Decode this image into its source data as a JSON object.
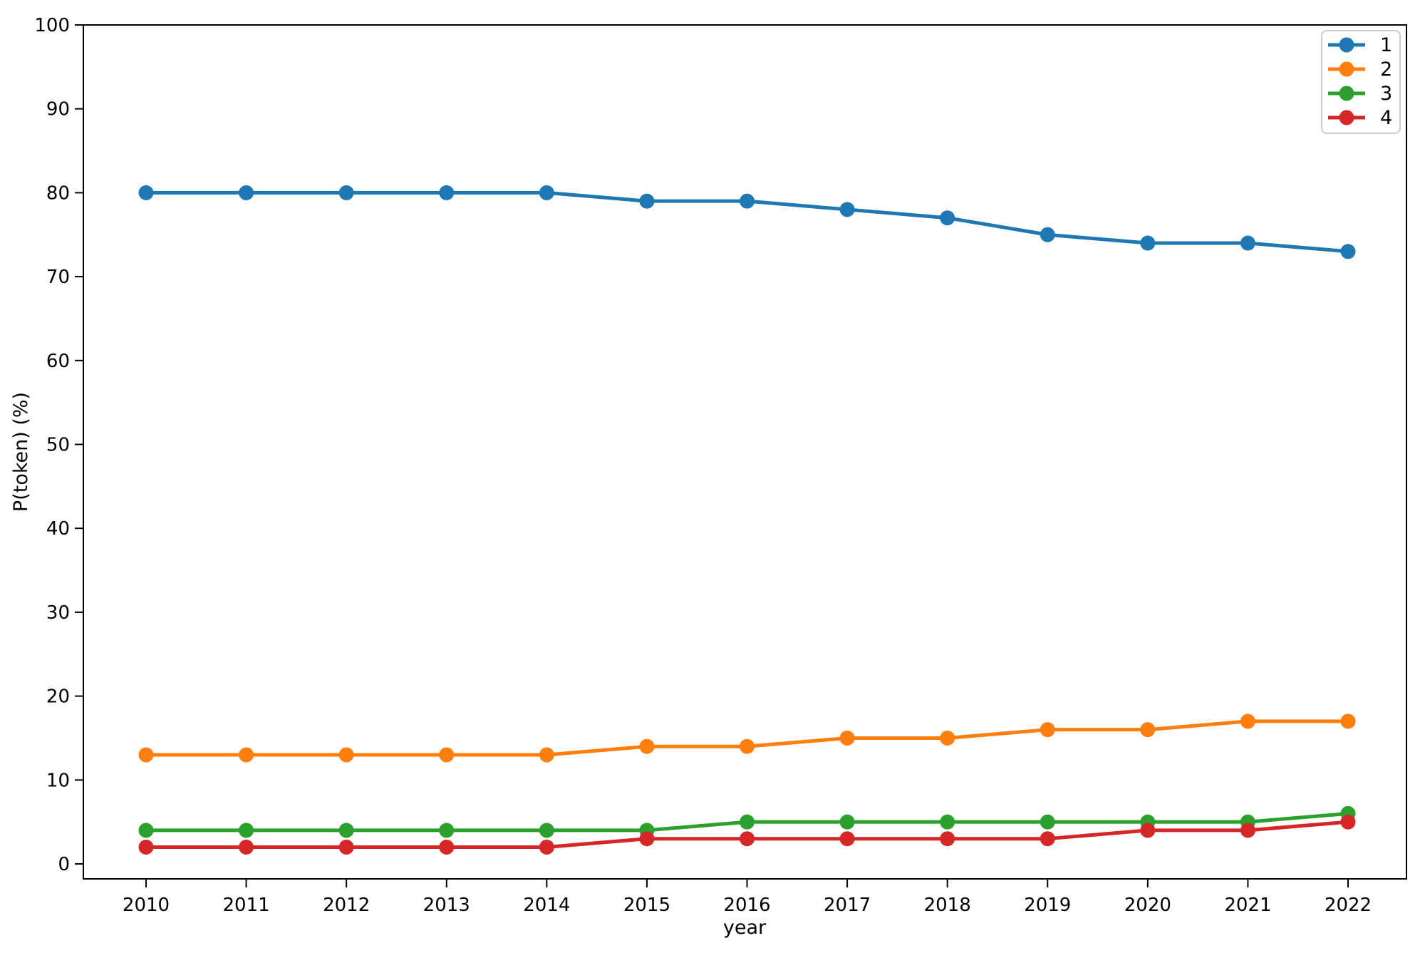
{
  "figure": {
    "background": "#ffffff",
    "spine_color": "#000000",
    "text_color": "#000000"
  },
  "chart_data": {
    "type": "line",
    "title": "",
    "xlabel": "year",
    "ylabel": "P(token) (%)",
    "x": [
      2010,
      2011,
      2012,
      2013,
      2014,
      2015,
      2016,
      2017,
      2018,
      2019,
      2020,
      2021,
      2022
    ],
    "series": [
      {
        "name": "1",
        "color": "#1f77b4",
        "values": [
          80,
          80,
          80,
          80,
          80,
          79,
          79,
          78,
          77,
          75,
          74,
          74,
          73
        ]
      },
      {
        "name": "2",
        "color": "#ff7f0e",
        "values": [
          13,
          13,
          13,
          13,
          13,
          14,
          14,
          15,
          15,
          16,
          16,
          17,
          17
        ]
      },
      {
        "name": "3",
        "color": "#2ca02c",
        "values": [
          4,
          4,
          4,
          4,
          4,
          4,
          5,
          5,
          5,
          5,
          5,
          5,
          6
        ]
      },
      {
        "name": "4",
        "color": "#d62728",
        "values": [
          2,
          2,
          2,
          2,
          2,
          3,
          3,
          3,
          3,
          3,
          4,
          4,
          5
        ]
      }
    ],
    "ylim": [
      0,
      100
    ],
    "yticks": [
      0,
      10,
      20,
      30,
      40,
      50,
      60,
      70,
      80,
      90,
      100
    ],
    "grid": false,
    "legend_position": "upper right",
    "legend_entries": [
      "1",
      "2",
      "3",
      "4"
    ],
    "marker": "circle",
    "line_style": "solid"
  }
}
